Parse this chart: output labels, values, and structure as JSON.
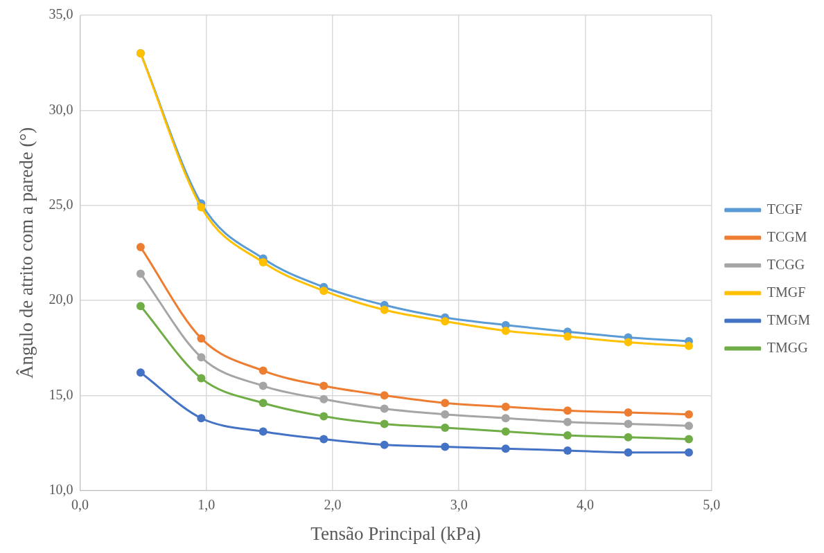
{
  "chart_data": {
    "type": "line",
    "xlabel": "Tensão Principal (kPa)",
    "ylabel": "Ângulo de atrito com a parede (°)",
    "x": [
      0.48,
      0.96,
      1.45,
      1.93,
      2.41,
      2.89,
      3.37,
      3.86,
      4.34,
      4.82
    ],
    "series": [
      {
        "name": "TCGF",
        "color": "#5b9bd5",
        "values": [
          33.0,
          25.1,
          22.2,
          20.7,
          19.75,
          19.1,
          18.7,
          18.35,
          18.05,
          17.85
        ]
      },
      {
        "name": "TCGM",
        "color": "#ed7d31",
        "values": [
          22.8,
          18.0,
          16.3,
          15.5,
          15.0,
          14.6,
          14.4,
          14.2,
          14.1,
          14.0
        ]
      },
      {
        "name": "TCGG",
        "color": "#a5a5a5",
        "values": [
          21.4,
          17.0,
          15.5,
          14.8,
          14.3,
          14.0,
          13.8,
          13.6,
          13.5,
          13.4
        ]
      },
      {
        "name": "TMGF",
        "color": "#ffc000",
        "values": [
          33.0,
          24.9,
          22.0,
          20.5,
          19.5,
          18.9,
          18.4,
          18.1,
          17.8,
          17.6
        ]
      },
      {
        "name": "TMGM",
        "color": "#4472c4",
        "values": [
          16.2,
          13.8,
          13.1,
          12.7,
          12.4,
          12.3,
          12.2,
          12.1,
          12.0,
          12.0
        ]
      },
      {
        "name": "TMGG",
        "color": "#70ad47",
        "values": [
          19.7,
          15.9,
          14.6,
          13.9,
          13.5,
          13.3,
          13.1,
          12.9,
          12.8,
          12.7
        ]
      }
    ],
    "xlim": [
      0,
      5
    ],
    "xticks": [
      {
        "value": 0,
        "label": "0,0"
      },
      {
        "value": 1,
        "label": "1,0"
      },
      {
        "value": 2,
        "label": "2,0"
      },
      {
        "value": 3,
        "label": "3,0"
      },
      {
        "value": 4,
        "label": "4,0"
      },
      {
        "value": 5,
        "label": "5,0"
      }
    ],
    "ylim": [
      10,
      35
    ],
    "yticks": [
      {
        "value": 10,
        "label": "10,0"
      },
      {
        "value": 15,
        "label": "15,0"
      },
      {
        "value": 20,
        "label": "20,0"
      },
      {
        "value": 25,
        "label": "25,0"
      },
      {
        "value": 30,
        "label": "30,0"
      },
      {
        "value": 35,
        "label": "35,0"
      }
    ],
    "grid": true,
    "legend": "right",
    "marker": "circle",
    "line_style": "solid"
  }
}
